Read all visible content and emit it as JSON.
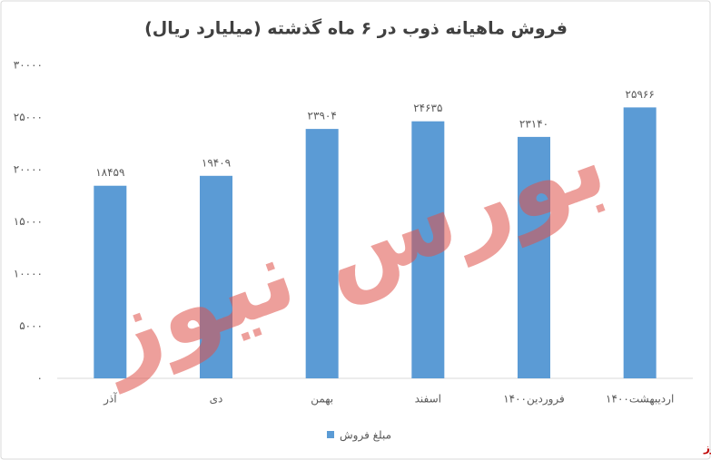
{
  "chart_data": {
    "type": "bar",
    "title": "فروش ماهیانه ذوب در ۶ ماه گذشته (میلیارد ریال)",
    "categories": [
      "آذر",
      "دی",
      "بهمن",
      "اسفند",
      "فروردین۱۴۰۰",
      "اردیبهشت۱۴۰۰"
    ],
    "series": [
      {
        "name": "مبلغ فروش",
        "color": "#5b9bd5",
        "values": [
          18459,
          19409,
          23904,
          24635,
          23140,
          25966
        ],
        "value_labels": [
          "۱۸۴۵۹",
          "۱۹۴۰۹",
          "۲۳۹۰۴",
          "۲۴۶۳۵",
          "۲۳۱۴۰",
          "۲۵۹۶۶"
        ]
      }
    ],
    "ylim": [
      0,
      30000
    ],
    "yticks": [
      {
        "value": 0,
        "label": "۰"
      },
      {
        "value": 5000,
        "label": "۵۰۰۰"
      },
      {
        "value": 10000,
        "label": "۱۰۰۰۰"
      },
      {
        "value": 15000,
        "label": "۱۵۰۰۰"
      },
      {
        "value": 20000,
        "label": "۲۰۰۰۰"
      },
      {
        "value": 25000,
        "label": "۲۵۰۰۰"
      },
      {
        "value": 30000,
        "label": "۳۰۰۰۰"
      }
    ],
    "grid": false,
    "legend": "bottom",
    "watermark": "بورس نیوز"
  }
}
